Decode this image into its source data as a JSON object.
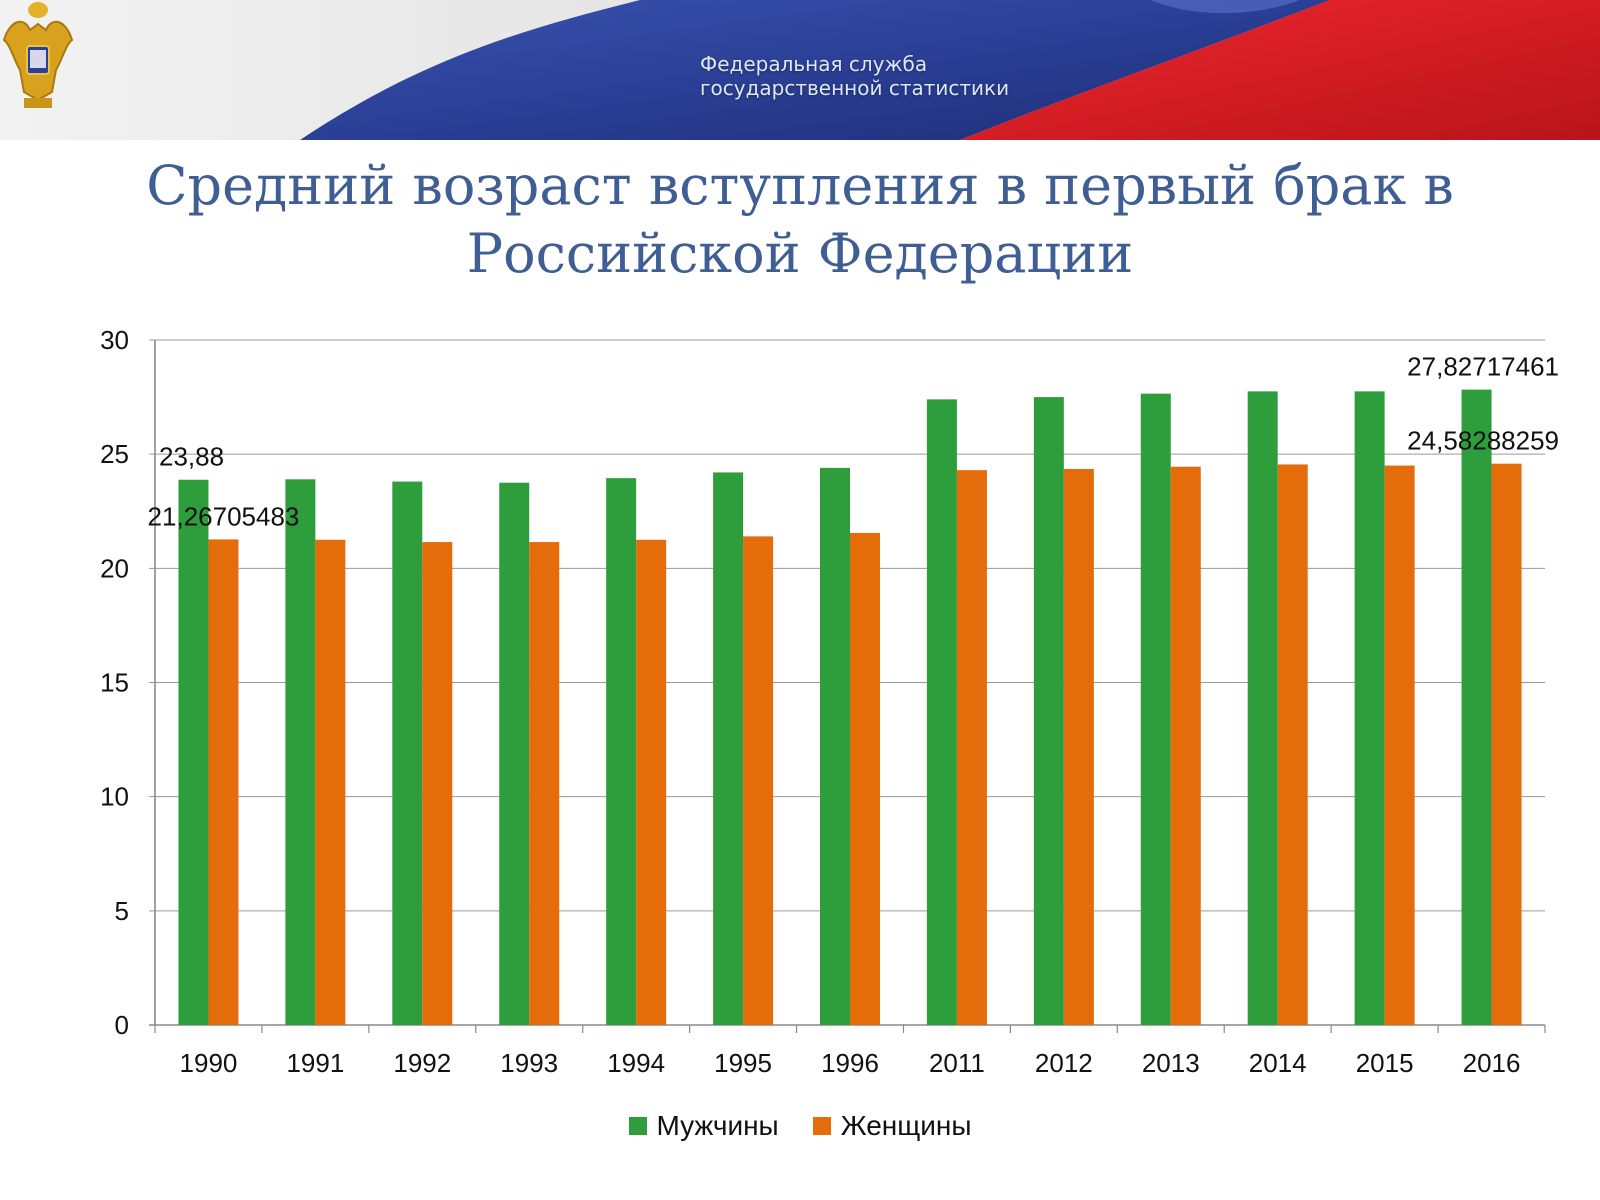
{
  "header": {
    "agency_line1": "Федеральная служба",
    "agency_line2": "государственной статистики"
  },
  "page": {
    "title_line1": "Средний возраст вступления в первый брак в",
    "title_line2": "Российской Федерации"
  },
  "colors": {
    "men": "#2e9e3c",
    "women": "#e46c0a",
    "title": "#3f5e93",
    "flag_blue": "#2a3f95",
    "flag_red": "#e31b23"
  },
  "icons": {
    "emblem": "double-headed-eagle-icon"
  },
  "chart_data": {
    "type": "bar",
    "title": "Средний возраст вступления в первый брак в Российской Федерации",
    "categories": [
      "1990",
      "1991",
      "1992",
      "1993",
      "1994",
      "1995",
      "1996",
      "2011",
      "2012",
      "2013",
      "2014",
      "2015",
      "2016"
    ],
    "series": [
      {
        "name": "Мужчины",
        "values": [
          23.88,
          23.9,
          23.8,
          23.75,
          23.95,
          24.2,
          24.4,
          27.4,
          27.5,
          27.65,
          27.75,
          27.75,
          27.82717461
        ]
      },
      {
        "name": "Женщины",
        "values": [
          21.26705483,
          21.25,
          21.15,
          21.15,
          21.25,
          21.4,
          21.55,
          24.3,
          24.35,
          24.45,
          24.55,
          24.5,
          24.58288259
        ]
      }
    ],
    "data_labels": [
      {
        "series": "Мужчины",
        "category": "1990",
        "text": "23,88"
      },
      {
        "series": "Женщины",
        "category": "1990",
        "text": "21,26705483"
      },
      {
        "series": "Мужчины",
        "category": "2016",
        "text": "27,82717461"
      },
      {
        "series": "Женщины",
        "category": "2016",
        "text": "24,58288259"
      }
    ],
    "ylim": [
      0,
      30
    ],
    "yticks": [
      0,
      5,
      10,
      15,
      20,
      25,
      30
    ],
    "xlabel": "",
    "ylabel": "",
    "grid": true,
    "legend": "bottom-center"
  }
}
